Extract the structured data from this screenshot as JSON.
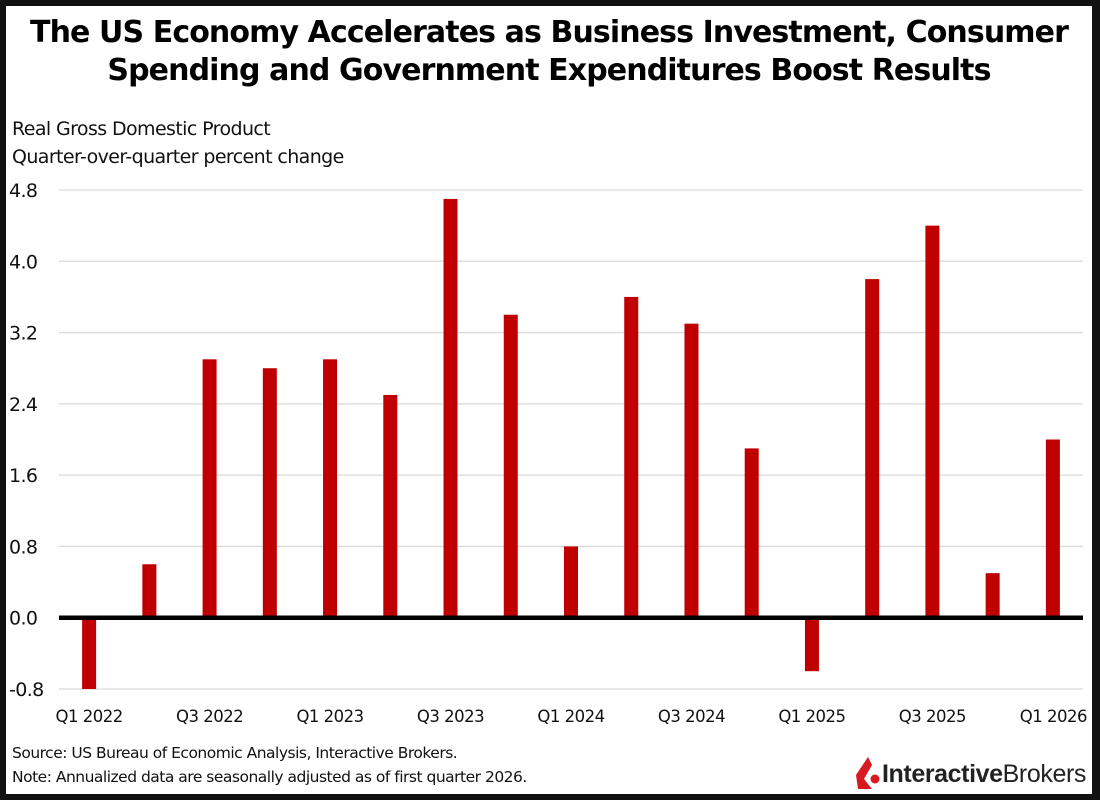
{
  "chart_data": {
    "type": "bar",
    "title": "The US Economy Accelerates as Business Investment, Consumer Spending and Government Expenditures Boost Results",
    "subtitle_lines": [
      "Real Gross Domestic Product",
      "Quarter-over-quarter percent change"
    ],
    "categories": [
      "Q1 2022",
      "Q2 2022",
      "Q3 2022",
      "Q4 2022",
      "Q1 2023",
      "Q2 2023",
      "Q3 2023",
      "Q4 2023",
      "Q1 2024",
      "Q2 2024",
      "Q3 2024",
      "Q4 2024",
      "Q1 2025",
      "Q2 2025",
      "Q3 2025",
      "Q4 2025",
      "Q1 2026"
    ],
    "values": [
      -0.8,
      0.6,
      2.9,
      2.8,
      2.9,
      2.5,
      4.7,
      3.4,
      0.8,
      3.6,
      3.3,
      1.9,
      -0.6,
      3.8,
      4.4,
      0.5,
      2.0
    ],
    "x_tick_labels": [
      "Q1 2022",
      "Q3 2022",
      "Q1 2023",
      "Q3 2023",
      "Q1 2024",
      "Q3 2024",
      "Q1 2025",
      "Q3 2025",
      "Q1 2026"
    ],
    "y_ticks": [
      "4.8",
      "4.0",
      "3.2",
      "2.4",
      "1.6",
      "0.8",
      "0.0",
      "-0.8"
    ],
    "ylim": [
      -0.8,
      4.8
    ],
    "xlabel": "",
    "ylabel": "",
    "grid": true,
    "legend": "none",
    "bar_color": "#c00000",
    "zero_line_color": "#000000",
    "grid_color": "#d9d9d9"
  },
  "footer": {
    "source": "Source: US Bureau of Economic Analysis, Interactive Brokers.",
    "note": "Note: Annualized data are seasonally adjusted as of first quarter 2026."
  },
  "logo": {
    "bold_part": "Interactive",
    "regular_part": "Brokers",
    "icon": "interactive-brokers-logo-icon",
    "color": "#d71921"
  }
}
